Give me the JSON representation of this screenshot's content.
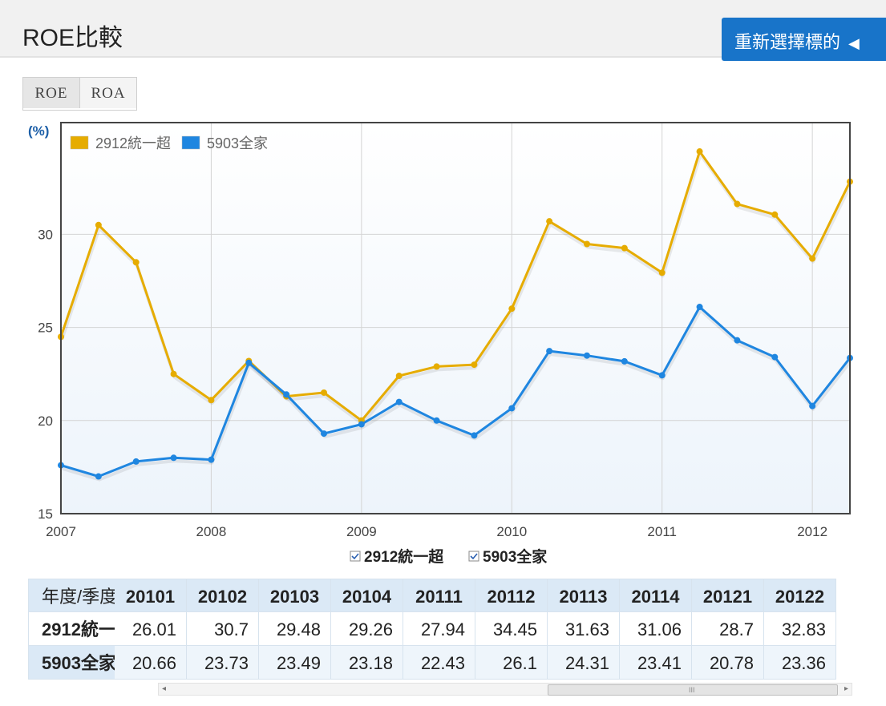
{
  "header": {
    "title": "ROE比較",
    "reselect_label": "重新選擇標的",
    "reselect_arrow": "◀"
  },
  "tabs": [
    {
      "label": "ROE"
    },
    {
      "label": "ROA"
    }
  ],
  "colors": {
    "series1": "#e6ac00",
    "series2": "#1f86e0",
    "header_bg": "#f1f1f1",
    "button": "#1874c9",
    "table_header": "#dbe9f6"
  },
  "chart_data": {
    "type": "line",
    "y_unit": "(%)",
    "ylim": [
      15,
      36
    ],
    "yticks": [
      15,
      20,
      25,
      30
    ],
    "xlim": [
      2007.0,
      2012.25
    ],
    "xticks": [
      "2007",
      "2008",
      "2009",
      "2010",
      "2011",
      "2012"
    ],
    "x": [
      2007.0,
      2007.25,
      2007.5,
      2007.75,
      2008.0,
      2008.25,
      2008.5,
      2008.75,
      2009.0,
      2009.25,
      2009.5,
      2009.75,
      2010.0,
      2010.25,
      2010.5,
      2010.75,
      2011.0,
      2011.25,
      2011.5,
      2011.75,
      2012.0,
      2012.25
    ],
    "grid": true,
    "legend_position": "top-left",
    "series": [
      {
        "name": "2912統一超",
        "color": "#e6ac00",
        "values": [
          24.5,
          30.5,
          28.5,
          22.5,
          21.1,
          23.2,
          21.3,
          21.5,
          20.0,
          22.4,
          22.9,
          23.0,
          26.01,
          30.7,
          29.48,
          29.26,
          27.94,
          34.45,
          31.63,
          31.06,
          28.7,
          32.83
        ]
      },
      {
        "name": "5903全家",
        "color": "#1f86e0",
        "values": [
          17.6,
          17.0,
          17.8,
          18.0,
          17.9,
          23.1,
          21.4,
          19.3,
          19.8,
          21.0,
          20.0,
          19.2,
          20.66,
          23.73,
          23.49,
          23.18,
          22.43,
          26.1,
          24.31,
          23.41,
          20.78,
          23.36
        ]
      }
    ]
  },
  "chart_legend_bottom": [
    {
      "label": "2912統一超",
      "checked": true
    },
    {
      "label": "5903全家",
      "checked": true
    }
  ],
  "table": {
    "corner_label": "年度/季度",
    "row_labels": [
      "2912統一超",
      "5903全家"
    ],
    "columns": [
      {
        "period": "20101",
        "v1": "26.01",
        "v2": "20.66"
      },
      {
        "period": "20102",
        "v1": "30.7",
        "v2": "23.73"
      },
      {
        "period": "20103",
        "v1": "29.48",
        "v2": "23.49"
      },
      {
        "period": "20104",
        "v1": "29.26",
        "v2": "23.18"
      },
      {
        "period": "20111",
        "v1": "27.94",
        "v2": "22.43"
      },
      {
        "period": "20112",
        "v1": "34.45",
        "v2": "26.1"
      },
      {
        "period": "20113",
        "v1": "31.63",
        "v2": "24.31"
      },
      {
        "period": "20114",
        "v1": "31.06",
        "v2": "23.41"
      },
      {
        "period": "20121",
        "v1": "28.7",
        "v2": "20.78"
      },
      {
        "period": "20122",
        "v1": "32.83",
        "v2": "23.36"
      }
    ],
    "scroll_grip": "III",
    "scroll_left": "◂",
    "scroll_right": "▸"
  }
}
